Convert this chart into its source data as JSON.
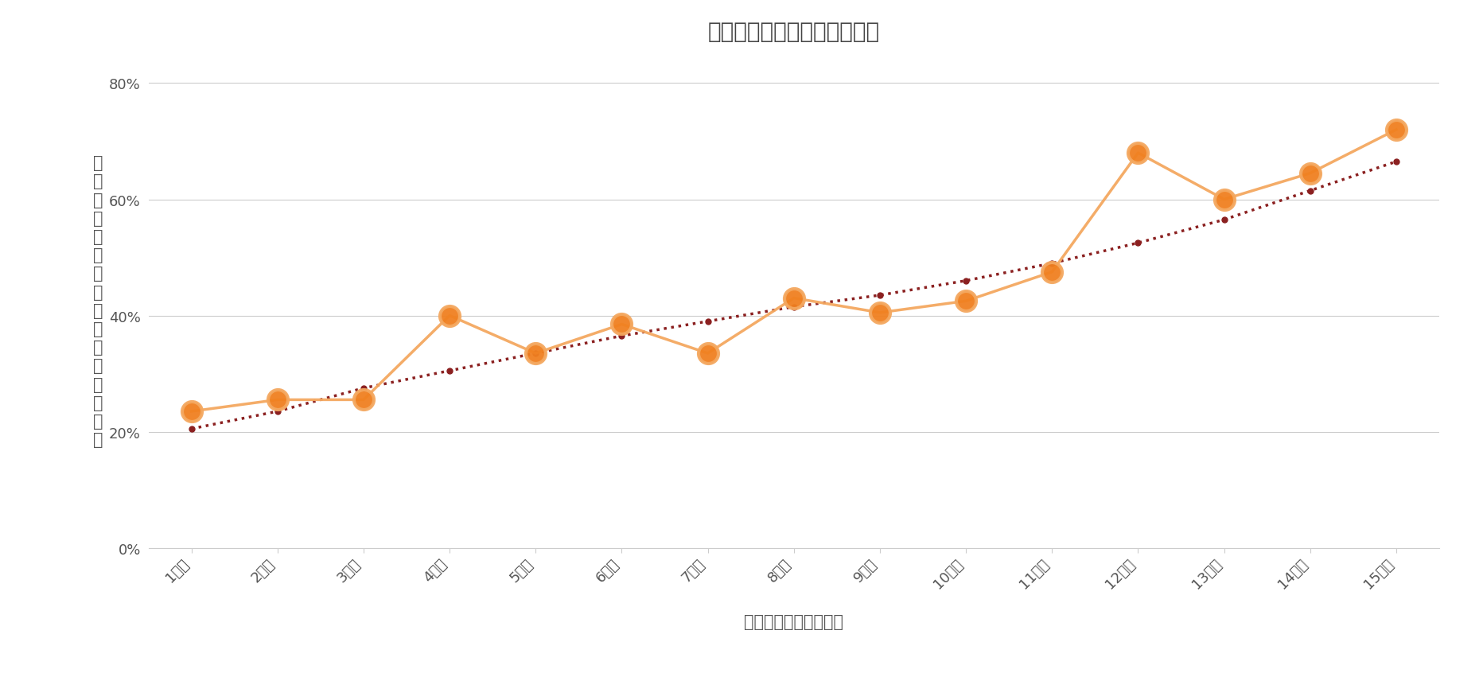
{
  "title": "花マルと学習継続期間の関係",
  "xlabel": "子どもの学習継続期間",
  "ylabel_chars": [
    "花",
    "マ",
    "ル",
    "を",
    "つ",
    "け",
    "る",
    "習",
    "慣",
    "の",
    "あ",
    "る",
    "親",
    "の",
    "割",
    "合"
  ],
  "categories": [
    "1週間",
    "2週間",
    "3週間",
    "4週間",
    "5週間",
    "6週間",
    "7週間",
    "8週間",
    "9週間",
    "10週間",
    "11週間",
    "12週間",
    "13週間",
    "14週間",
    "15週間"
  ],
  "actual_values": [
    0.235,
    0.255,
    0.255,
    0.4,
    0.335,
    0.385,
    0.335,
    0.43,
    0.405,
    0.425,
    0.475,
    0.68,
    0.6,
    0.645,
    0.72
  ],
  "trend_values": [
    0.205,
    0.235,
    0.275,
    0.305,
    0.335,
    0.365,
    0.39,
    0.415,
    0.435,
    0.46,
    0.49,
    0.525,
    0.565,
    0.615,
    0.665
  ],
  "actual_line_color": "#F4A860",
  "actual_marker_color": "#F08020",
  "trend_line_color": "#8B2020",
  "ylim": [
    0.0,
    0.85
  ],
  "yticks": [
    0.0,
    0.2,
    0.4,
    0.6,
    0.8
  ],
  "background_color": "#ffffff",
  "grid_color": "#cccccc",
  "title_fontsize": 20,
  "label_fontsize": 15,
  "tick_fontsize": 13,
  "ylabel_fontsize": 15
}
